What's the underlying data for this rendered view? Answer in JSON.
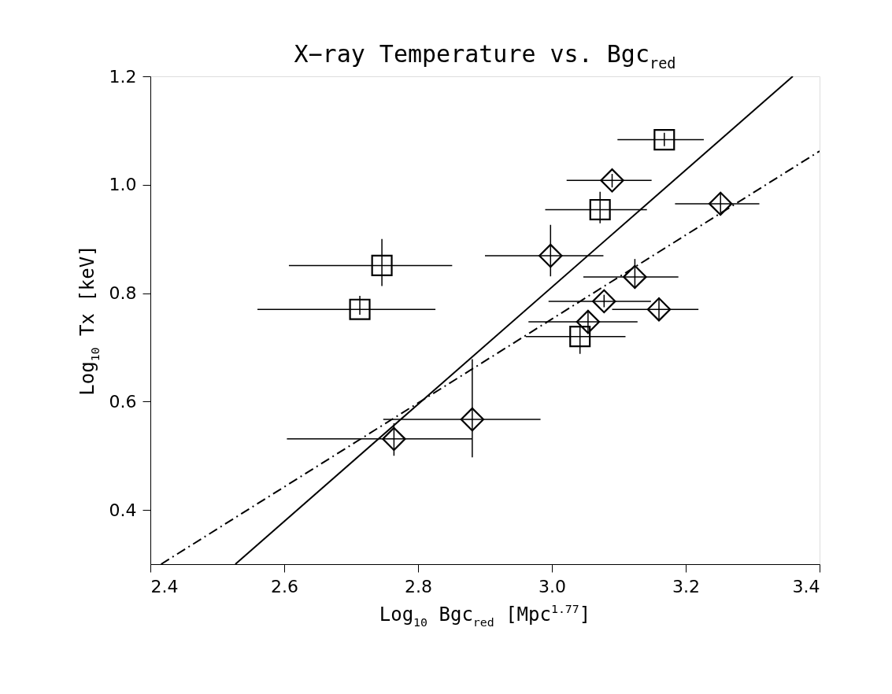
{
  "chart_data": {
    "type": "scatter",
    "title": "X−ray Temperature vs. Bgc$_{red}$",
    "xlabel": "Log$_{10}$ Bgc$_{red}$ [Mpc$^{1.77}$]",
    "ylabel": "Log$_{10}$ Tx [keV]",
    "xlim": [
      2.4,
      3.4
    ],
    "xticks": [
      {
        "value": 2.4,
        "label": "2.4"
      },
      {
        "value": 2.6,
        "label": "2.6"
      },
      {
        "value": 2.8,
        "label": "2.8"
      },
      {
        "value": 3.0,
        "label": "3.0"
      },
      {
        "value": 3.2,
        "label": "3.2"
      },
      {
        "value": 3.4,
        "label": "3.4"
      }
    ],
    "ylim": [
      0.3,
      1.2
    ],
    "yticks": [
      {
        "value": 0.4,
        "label": "0.4"
      },
      {
        "value": 0.6,
        "label": "0.6"
      },
      {
        "value": 0.8,
        "label": "0.8"
      },
      {
        "value": 1.0,
        "label": "1.0"
      },
      {
        "value": 1.2,
        "label": "1.2"
      }
    ],
    "grid": false,
    "series": [
      {
        "type": "scatter",
        "marker": "square",
        "color": "#000000",
        "x": [
          3.168,
          3.072,
          2.746,
          2.713,
          3.042
        ],
        "values": [
          1.083,
          0.954,
          0.851,
          0.77,
          0.72
        ],
        "errors": [
          [
            1.071,
            1.096
          ],
          [
            0.929,
            0.987
          ],
          [
            0.813,
            0.9
          ],
          [
            0.76,
            0.795
          ],
          [
            0.688,
            0.743
          ]
        ],
        "xerrors": [
          [
            3.098,
            3.227
          ],
          [
            2.99,
            3.142
          ],
          [
            2.607,
            2.851
          ],
          [
            2.56,
            2.826
          ],
          [
            2.961,
            3.11
          ]
        ]
      },
      {
        "type": "scatter",
        "marker": "diamond",
        "color": "#000000",
        "x": [
          3.09,
          3.252,
          2.998,
          3.124,
          3.078,
          3.054,
          3.16,
          2.881,
          2.764
        ],
        "values": [
          1.008,
          0.965,
          0.869,
          0.83,
          0.785,
          0.747,
          0.77,
          0.567,
          0.531
        ],
        "errors": [
          [
            0.995,
            1.02
          ],
          [
            0.943,
            0.985
          ],
          [
            0.831,
            0.926
          ],
          [
            0.808,
            0.863
          ],
          [
            0.774,
            0.797
          ],
          [
            0.725,
            0.769
          ],
          [
            0.749,
            0.792
          ],
          [
            0.497,
            0.678
          ],
          [
            0.5,
            0.56
          ]
        ],
        "xerrors": [
          [
            3.022,
            3.149
          ],
          [
            3.184,
            3.31
          ],
          [
            2.9,
            3.077
          ],
          [
            3.047,
            3.189
          ],
          [
            2.995,
            3.148
          ],
          [
            2.965,
            3.128
          ],
          [
            3.09,
            3.219
          ],
          [
            2.748,
            2.983
          ],
          [
            2.604,
            2.881
          ]
        ]
      },
      {
        "type": "line",
        "line_style": "solid",
        "color": "#000000",
        "x": [
          2.527,
          3.36
        ],
        "values": [
          0.3,
          1.2
        ]
      },
      {
        "type": "line",
        "line_style": "dashed",
        "color": "#000000",
        "x": [
          2.416,
          3.4
        ],
        "values": [
          0.3,
          1.062
        ]
      }
    ]
  }
}
